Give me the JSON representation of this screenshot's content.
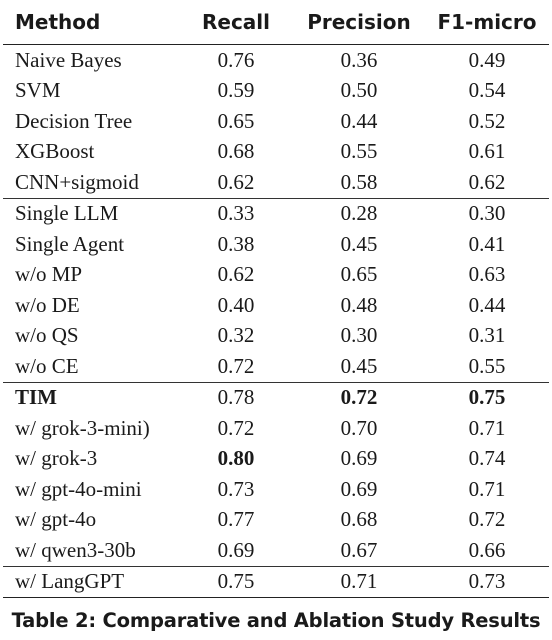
{
  "table": {
    "headers": [
      "Method",
      "Recall",
      "Precision",
      "F1-micro"
    ],
    "groups": [
      {
        "rows": [
          {
            "method": "Naive Bayes",
            "recall": "0.76",
            "precision": "0.36",
            "f1": "0.49"
          },
          {
            "method": "SVM",
            "recall": "0.59",
            "precision": "0.50",
            "f1": "0.54"
          },
          {
            "method": "Decision Tree",
            "recall": "0.65",
            "precision": "0.44",
            "f1": "0.52"
          },
          {
            "method": "XGBoost",
            "recall": "0.68",
            "precision": "0.55",
            "f1": "0.61"
          },
          {
            "method": "CNN+sigmoid",
            "recall": "0.62",
            "precision": "0.58",
            "f1": "0.62"
          }
        ]
      },
      {
        "rows": [
          {
            "method": "Single LLM",
            "recall": "0.33",
            "precision": "0.28",
            "f1": "0.30"
          },
          {
            "method": "Single Agent",
            "recall": "0.38",
            "precision": "0.45",
            "f1": "0.41"
          },
          {
            "method": "w/o MP",
            "recall": "0.62",
            "precision": "0.65",
            "f1": "0.63"
          },
          {
            "method": "w/o DE",
            "recall": "0.40",
            "precision": "0.48",
            "f1": "0.44"
          },
          {
            "method": "w/o QS",
            "recall": "0.32",
            "precision": "0.30",
            "f1": "0.31"
          },
          {
            "method": "w/o CE",
            "recall": "0.72",
            "precision": "0.45",
            "f1": "0.55"
          }
        ]
      },
      {
        "rows": [
          {
            "method": "TIM",
            "recall": "0.78",
            "precision": "0.72",
            "f1": "0.75",
            "bold": [
              "method",
              "precision",
              "f1"
            ]
          },
          {
            "method": "w/ grok-3-mini)",
            "recall": "0.72",
            "precision": "0.70",
            "f1": "0.71"
          },
          {
            "method": "w/ grok-3",
            "recall": "0.80",
            "precision": "0.69",
            "f1": "0.74",
            "bold": [
              "recall"
            ]
          },
          {
            "method": "w/ gpt-4o-mini",
            "recall": "0.73",
            "precision": "0.69",
            "f1": "0.71"
          },
          {
            "method": "w/ gpt-4o",
            "recall": "0.77",
            "precision": "0.68",
            "f1": "0.72"
          },
          {
            "method": "w/ qwen3-30b",
            "recall": "0.69",
            "precision": "0.67",
            "f1": "0.66"
          }
        ]
      },
      {
        "rows": [
          {
            "method": "w/ LangGPT",
            "recall": "0.75",
            "precision": "0.71",
            "f1": "0.73"
          }
        ]
      }
    ]
  },
  "caption": "Table 2: Comparative and Ablation Study Results"
}
